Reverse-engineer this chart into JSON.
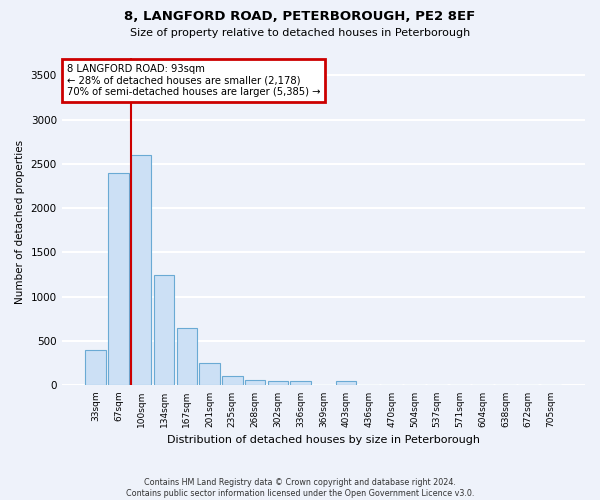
{
  "title1": "8, LANGFORD ROAD, PETERBOROUGH, PE2 8EF",
  "title2": "Size of property relative to detached houses in Peterborough",
  "xlabel": "Distribution of detached houses by size in Peterborough",
  "ylabel": "Number of detached properties",
  "categories": [
    "33sqm",
    "67sqm",
    "100sqm",
    "134sqm",
    "167sqm",
    "201sqm",
    "235sqm",
    "268sqm",
    "302sqm",
    "336sqm",
    "369sqm",
    "403sqm",
    "436sqm",
    "470sqm",
    "504sqm",
    "537sqm",
    "571sqm",
    "604sqm",
    "638sqm",
    "672sqm",
    "705sqm"
  ],
  "values": [
    400,
    2400,
    2600,
    1250,
    650,
    250,
    110,
    60,
    50,
    50,
    0,
    50,
    0,
    0,
    0,
    0,
    0,
    0,
    0,
    0,
    0
  ],
  "bar_color": "#cce0f5",
  "bar_edge_color": "#6aaad4",
  "vline_color": "#cc0000",
  "annotation_title": "8 LANGFORD ROAD: 93sqm",
  "annotation_line1": "← 28% of detached houses are smaller (2,178)",
  "annotation_line2": "70% of semi-detached houses are larger (5,385) →",
  "annotation_box_facecolor": "#ffffff",
  "annotation_box_edgecolor": "#cc0000",
  "ylim": [
    0,
    3700
  ],
  "yticks": [
    0,
    500,
    1000,
    1500,
    2000,
    2500,
    3000,
    3500
  ],
  "footer1": "Contains HM Land Registry data © Crown copyright and database right 2024.",
  "footer2": "Contains public sector information licensed under the Open Government Licence v3.0.",
  "background_color": "#eef2fa",
  "plot_bg_color": "#eef2fa",
  "grid_color": "#ffffff"
}
